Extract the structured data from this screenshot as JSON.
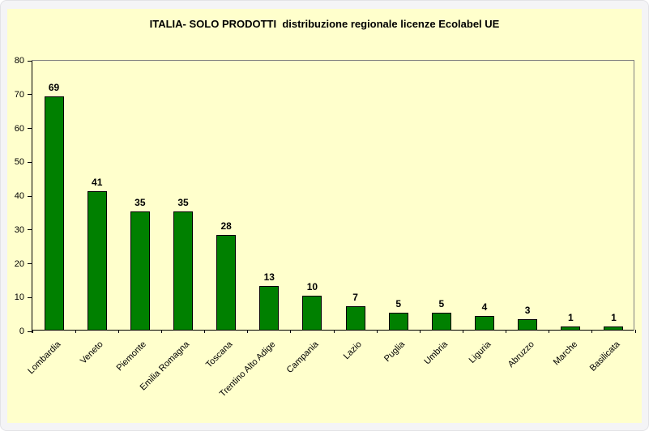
{
  "title": "ITALIA- SOLO PRODOTTI  distribuzione regionale licenze Ecolabel UE",
  "chart_data": {
    "type": "bar",
    "title": "ITALIA- SOLO PRODOTTI  distribuzione regionale licenze Ecolabel UE",
    "categories": [
      "Lombardia",
      "Veneto",
      "Piemonte",
      "Emilia Romagna",
      "Toscana",
      "Trentino Alto Adige",
      "Campania",
      "Lazio",
      "Puglia",
      "Umbria",
      "Liguria",
      "Abruzzo",
      "Marche",
      "Basilicata"
    ],
    "values": [
      69,
      41,
      35,
      35,
      28,
      13,
      10,
      7,
      5,
      5,
      4,
      3,
      1,
      1
    ],
    "xlabel": "",
    "ylabel": "",
    "ylim": [
      0,
      80
    ],
    "ytick_step": 10,
    "yticks": [
      0,
      10,
      20,
      30,
      40,
      50,
      60,
      70,
      80
    ],
    "grid": false,
    "legend": "none",
    "bar_value_labels_shown": true,
    "x_label_rotation_deg": 45,
    "colors": {
      "bar_fill": "#008000",
      "bar_border": "#000000",
      "panel_background": "#FFFFCC",
      "plot_border": "#808080",
      "axis": "#000000",
      "text": "#000000",
      "page_background": "#f4f4f6"
    }
  }
}
